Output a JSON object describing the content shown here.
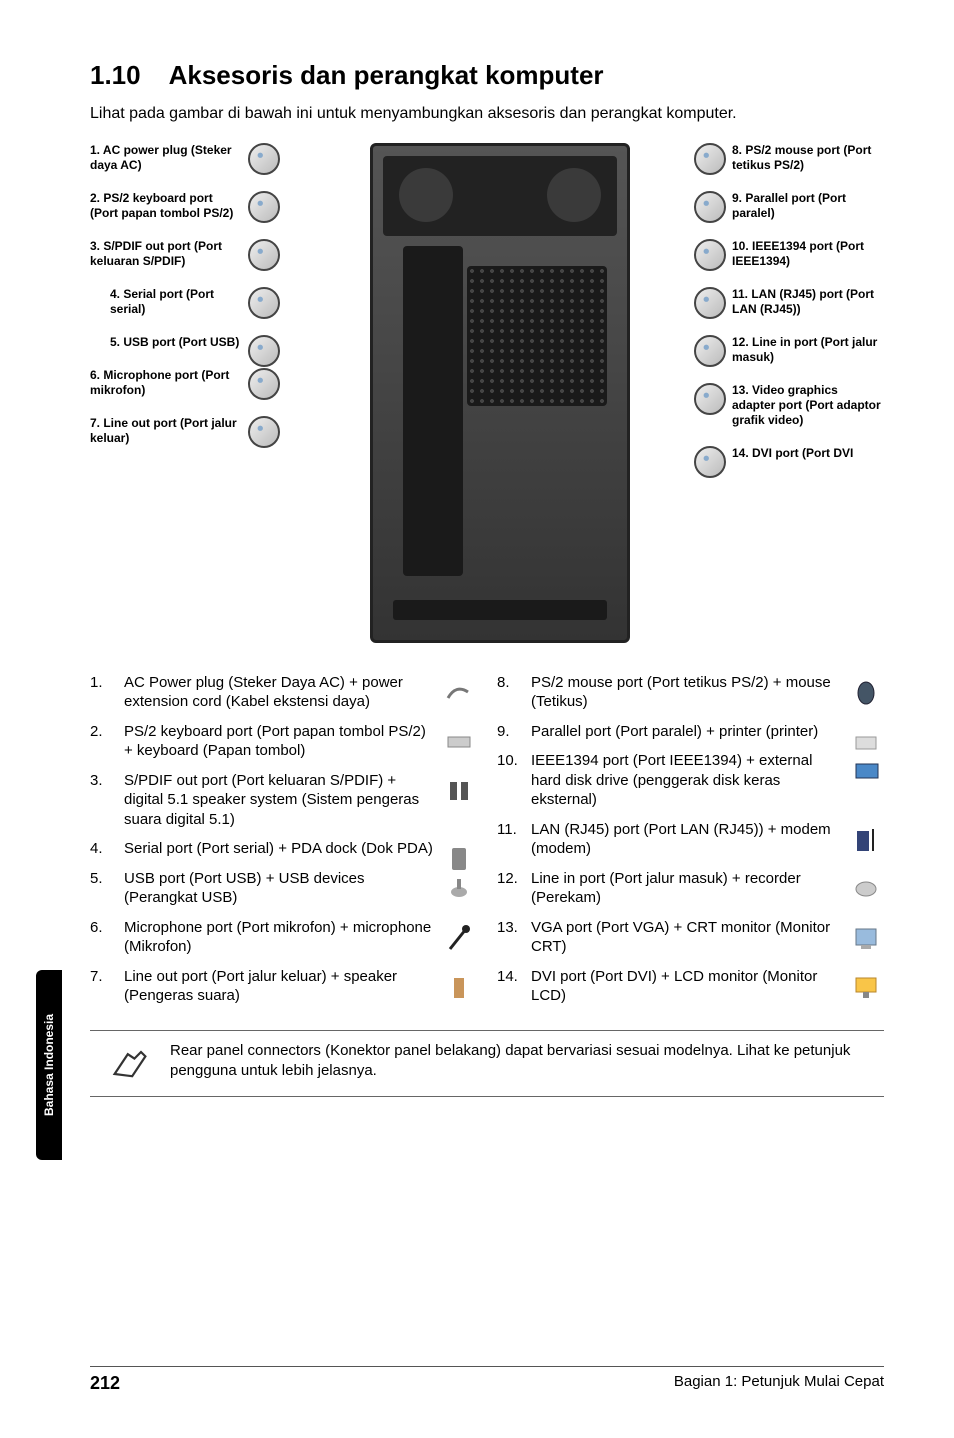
{
  "side_tab": "Bahasa Indonesia",
  "title_num": "1.10",
  "title_text": "Aksesoris dan perangkat komputer",
  "intro": "Lihat pada gambar di bawah ini untuk menyambungkan aksesoris dan perangkat komputer.",
  "left_labels": [
    {
      "text": "1. AC power plug (Steker daya AC)",
      "indent": false
    },
    {
      "text": "2. PS/2 keyboard port (Port papan tombol PS/2)",
      "indent": false
    },
    {
      "text": "3. S/PDIF out port (Port keluaran S/PDIF)",
      "indent": false
    },
    {
      "text": "4. Serial port (Port serial)",
      "indent": true
    },
    {
      "text": "5. USB port (Port USB)",
      "indent": true
    },
    {
      "text": "6. Microphone port (Port mikrofon)",
      "indent": false
    },
    {
      "text": "7. Line out port (Port jalur keluar)",
      "indent": false
    }
  ],
  "right_labels": [
    {
      "text": "8. PS/2 mouse port (Port tetikus PS/2)"
    },
    {
      "text": "9. Parallel port (Port paralel)"
    },
    {
      "text": "10. IEEE1394 port (Port IEEE1394)"
    },
    {
      "text": "11. LAN (RJ45) port (Port LAN (RJ45))"
    },
    {
      "text": "12. Line in port (Port jalur masuk)"
    },
    {
      "text": "13. Video graphics adapter port (Port adaptor grafik video)"
    },
    {
      "text": "14. DVI port (Port DVI"
    }
  ],
  "list_left": [
    {
      "n": "1.",
      "t": "AC Power plug (Steker Daya AC) + power extension cord (Kabel ekstensi daya)",
      "icon": "cable"
    },
    {
      "n": "2.",
      "t": "PS/2 keyboard port (Port papan tombol PS/2) + keyboard (Papan tombol)",
      "icon": "keyboard"
    },
    {
      "n": "3.",
      "t": "S/PDIF out port (Port keluaran S/PDIF) + digital 5.1 speaker system (Sistem pengeras suara digital 5.1)",
      "icon": "speakers"
    },
    {
      "n": "4.",
      "t": "Serial port (Port serial) + PDA dock (Dok PDA)",
      "icon": "pda"
    },
    {
      "n": "5.",
      "t": "USB port (Port USB) + USB devices (Perangkat USB)",
      "icon": "usb"
    },
    {
      "n": "6.",
      "t": "Microphone port (Port mikrofon) + microphone (Mikrofon)",
      "icon": "mic"
    },
    {
      "n": "7.",
      "t": "Line out port (Port jalur keluar) + speaker (Pengeras suara)",
      "icon": "speaker"
    }
  ],
  "list_right": [
    {
      "n": "8.",
      "t": "PS/2 mouse port (Port tetikus PS/2) + mouse (Tetikus)",
      "icon": "mouse"
    },
    {
      "n": "9.",
      "t": "Parallel port (Port paralel) + printer (printer)",
      "icon": "printer"
    },
    {
      "n": "10.",
      "t": "IEEE1394 port (Port IEEE1394) + external hard disk drive (penggerak disk keras eksternal)",
      "icon": "hdd"
    },
    {
      "n": "11.",
      "t": "LAN (RJ45) port (Port LAN (RJ45)) + modem (modem)",
      "icon": "modem"
    },
    {
      "n": "12.",
      "t": "Line in port (Port jalur masuk) + recorder (Perekam)",
      "icon": "recorder"
    },
    {
      "n": "13.",
      "t": "VGA port (Port VGA) + CRT monitor (Monitor CRT)",
      "icon": "crt"
    },
    {
      "n": "14.",
      "t": "DVI port (Port DVI) + LCD monitor (Monitor LCD)",
      "icon": "lcd"
    }
  ],
  "note": "Rear panel connectors (Konektor panel belakang) dapat bervariasi sesuai modelnya. Lihat ke petunjuk pengguna untuk lebih jelasnya.",
  "page_number": "212",
  "footer_text": "Bagian 1: Petunjuk Mulai Cepat",
  "colors": {
    "circ_border": "#444444",
    "tower_bg": "#3a3a3a",
    "text": "#000000",
    "line": "#000000"
  }
}
